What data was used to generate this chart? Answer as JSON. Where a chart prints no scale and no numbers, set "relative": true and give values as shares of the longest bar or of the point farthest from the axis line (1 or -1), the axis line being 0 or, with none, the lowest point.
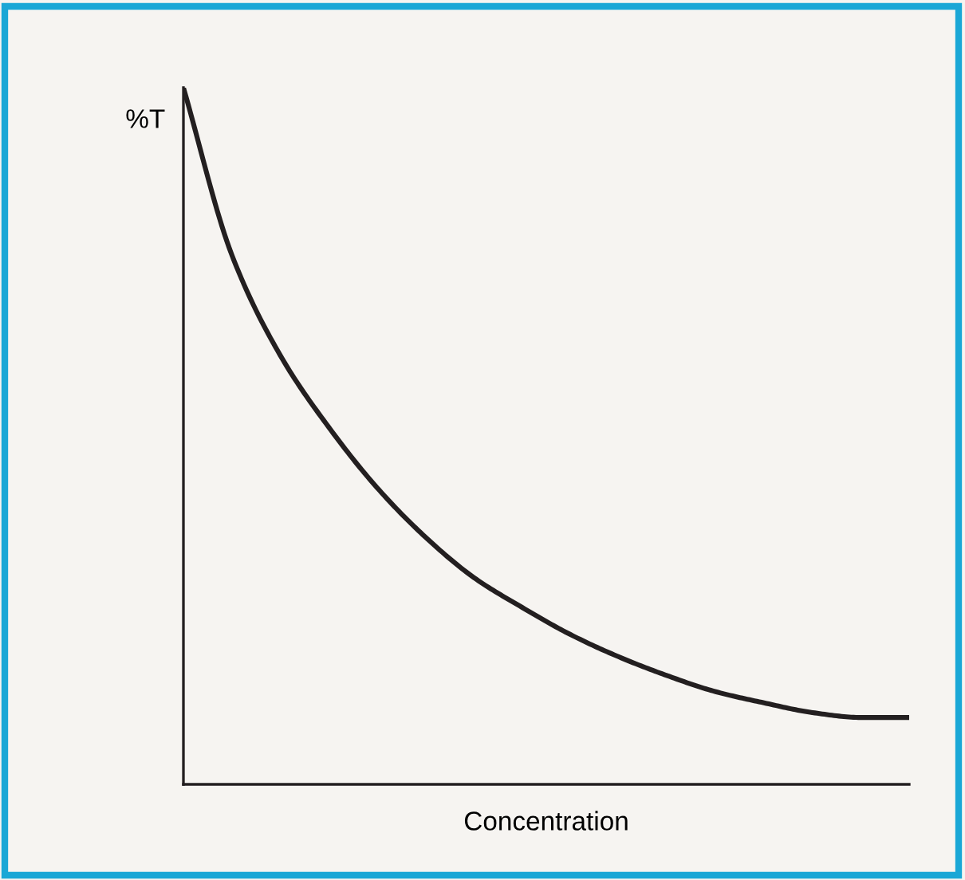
{
  "chart_data": {
    "type": "line",
    "relative": true,
    "xlabel": "Concentration",
    "ylabel": "%T",
    "categories": [
      null,
      null,
      null,
      null,
      null,
      null,
      null,
      null,
      null,
      null,
      null,
      null,
      null,
      null,
      null,
      null
    ],
    "series": [
      {
        "color": "#231f20",
        "values": [
          1.0,
          0.76,
          0.616,
          0.513,
          0.426,
          0.355,
          0.297,
          0.254,
          0.215,
          0.183,
          0.156,
          0.133,
          0.117,
          0.103,
          0.096,
          0.096
        ]
      }
    ],
    "marker": "none",
    "line_style": "solid"
  }
}
